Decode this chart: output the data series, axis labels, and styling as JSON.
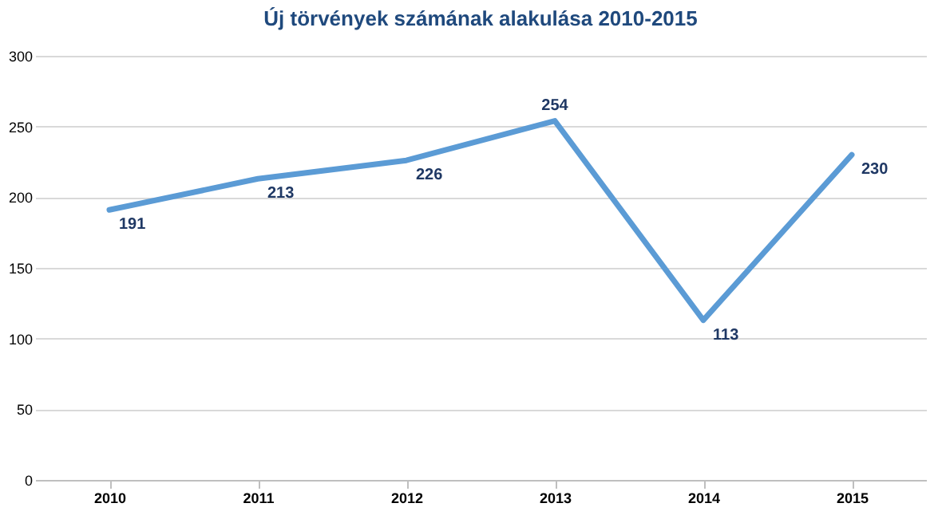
{
  "chart_data": {
    "type": "line",
    "title": "Új törvények számának alakulása 2010-2015",
    "categories": [
      "2010",
      "2011",
      "2012",
      "2013",
      "2014",
      "2015"
    ],
    "series": [
      {
        "color": "#5b9bd5",
        "values": [
          191,
          213,
          226,
          254,
          113,
          230
        ]
      }
    ],
    "ylim": [
      0,
      300
    ],
    "yticks": [
      0,
      50,
      100,
      150,
      200,
      250,
      300
    ],
    "grid": "y",
    "data_labels": true,
    "marker": "none",
    "line_style": "solid"
  }
}
